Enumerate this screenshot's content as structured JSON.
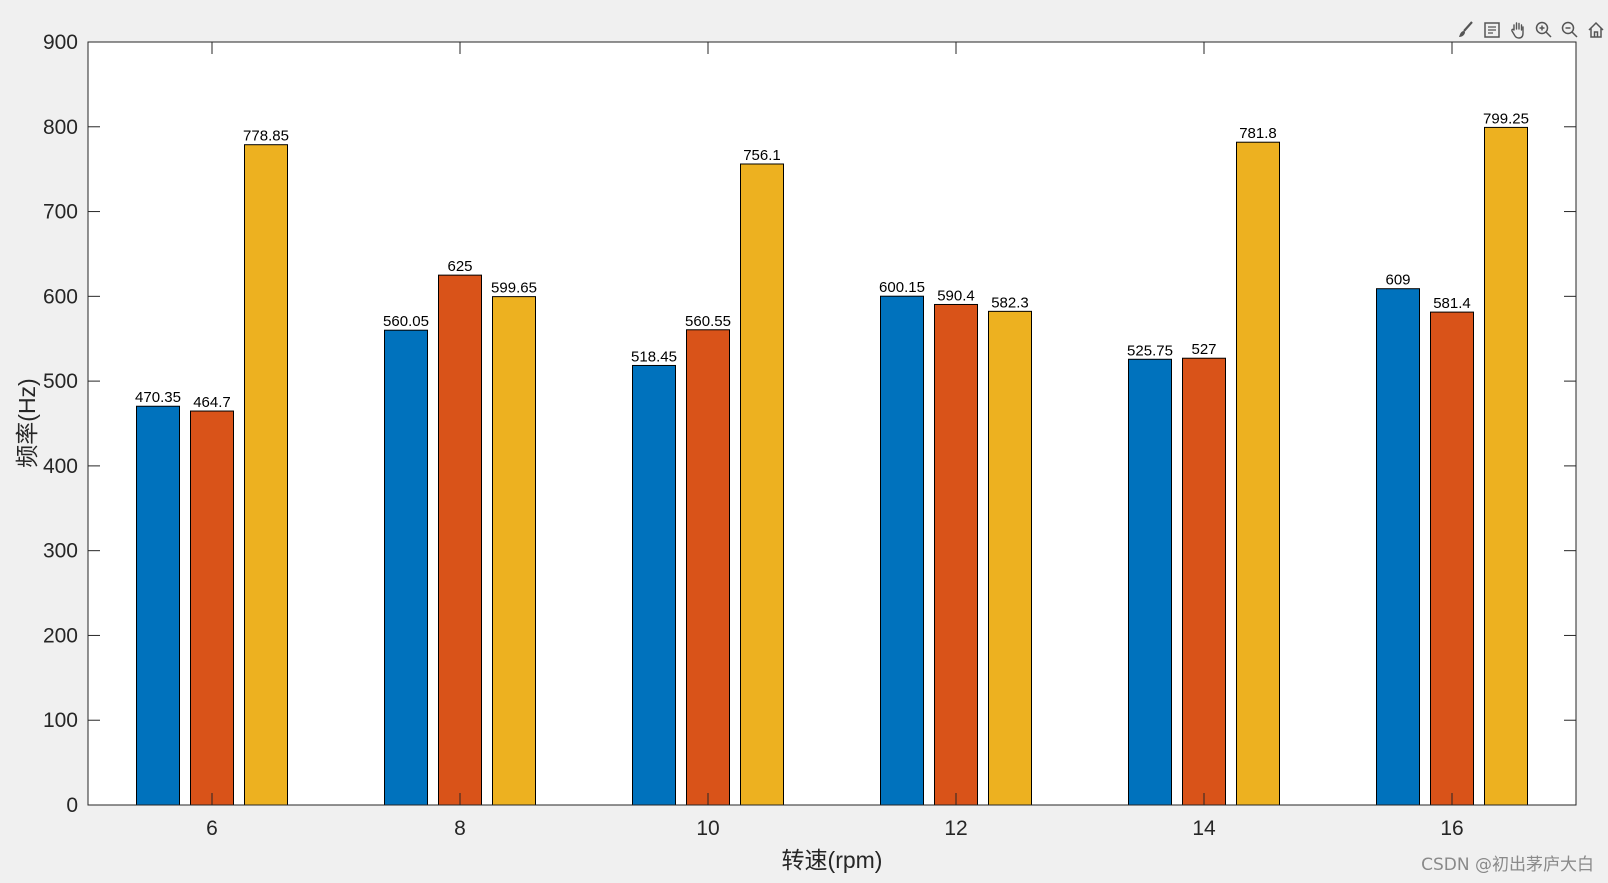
{
  "chart_data": {
    "type": "bar",
    "categories": [
      "6",
      "8",
      "10",
      "12",
      "14",
      "16"
    ],
    "series": [
      {
        "color": "#0072BD",
        "values": [
          470.35,
          560.05,
          518.45,
          600.15,
          525.75,
          609
        ]
      },
      {
        "color": "#D95319",
        "values": [
          464.7,
          625,
          560.55,
          590.4,
          527,
          581.4
        ]
      },
      {
        "color": "#EDB120",
        "values": [
          778.85,
          599.65,
          756.1,
          582.3,
          781.8,
          799.25
        ]
      }
    ],
    "data_labels": [
      [
        "470.35",
        "560.05",
        "518.45",
        "600.15",
        "525.75",
        "609"
      ],
      [
        "464.7",
        "625",
        "560.55",
        "590.4",
        "527",
        "581.4"
      ],
      [
        "778.85",
        "599.65",
        "756.1",
        "582.3",
        "781.8",
        "799.25"
      ]
    ],
    "ylim": [
      0,
      900
    ],
    "yticks": [
      "0",
      "100",
      "200",
      "300",
      "400",
      "500",
      "600",
      "700",
      "800",
      "900"
    ],
    "xlabel": "转速(rpm)",
    "ylabel": "频率(Hz)",
    "grid": false,
    "legend": "none"
  },
  "toolbar": {
    "icons": [
      "brush-icon",
      "data-tips-icon",
      "pan-hand-icon",
      "zoom-in-icon",
      "zoom-out-icon",
      "home-icon"
    ]
  },
  "watermark": "CSDN @初出茅庐大白"
}
